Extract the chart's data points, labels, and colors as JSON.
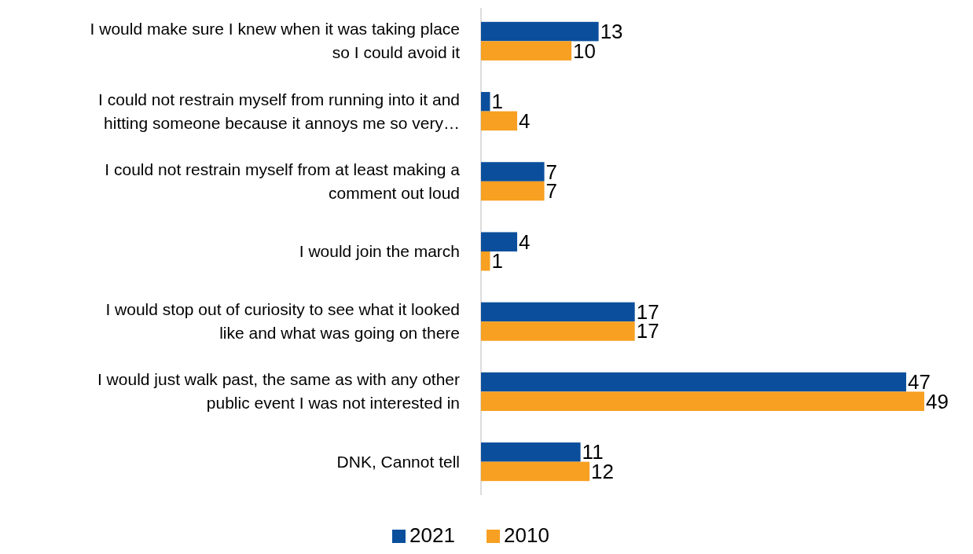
{
  "chart_data": {
    "type": "bar",
    "orientation": "horizontal",
    "categories": [
      "I would make sure I knew when it was taking place so I could avoid it",
      "I could not restrain myself from running into it and hitting someone because it annoys me so very…",
      "I could not restrain myself from at least making a comment out loud",
      "I would join the march",
      "I would stop out of curiosity to see what it looked like and what was going on there",
      "I would just walk past, the same as with any other public event I was not interested in",
      "DNK, Cannot tell"
    ],
    "series": [
      {
        "name": "2021",
        "color": "#0b4f9c",
        "values": [
          13,
          1,
          7,
          4,
          17,
          47,
          11
        ]
      },
      {
        "name": "2010",
        "color": "#f7a021",
        "values": [
          10,
          4,
          7,
          1,
          17,
          49,
          12
        ]
      }
    ],
    "data_labels": true,
    "legend": "bottom",
    "grid": false
  }
}
